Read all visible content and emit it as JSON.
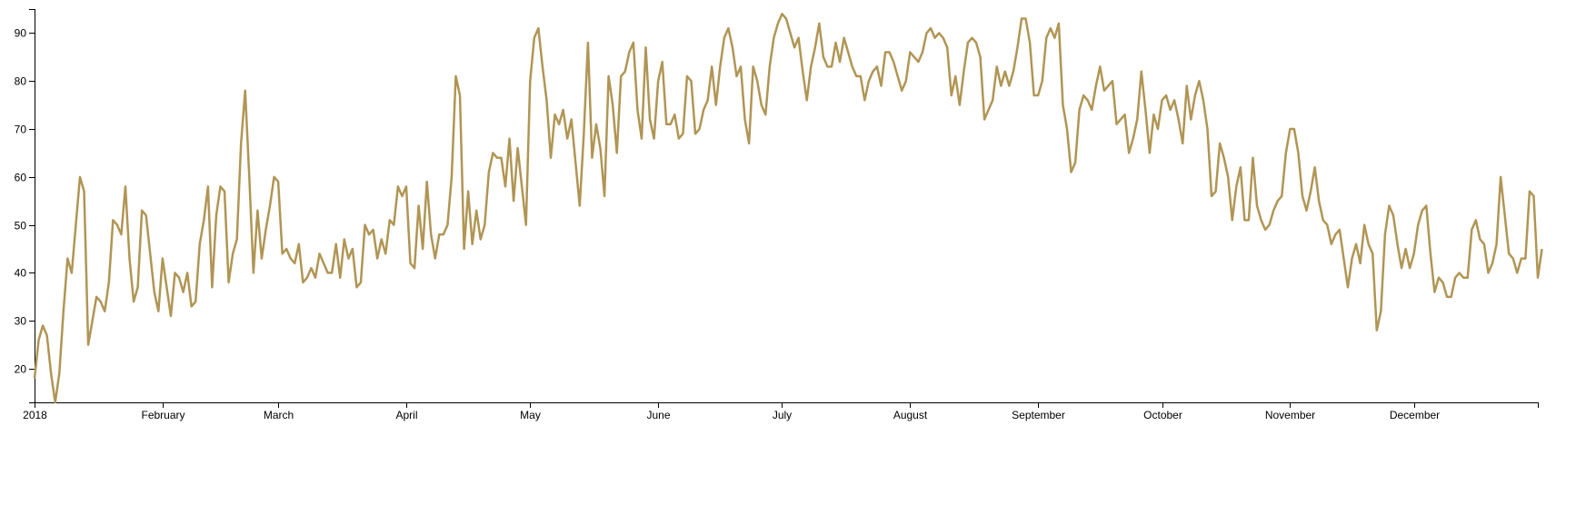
{
  "chart_data": {
    "type": "line",
    "title": "",
    "xlabel": "",
    "ylabel": "",
    "x_start": "2018-01-01",
    "x_end": "2018-12-31",
    "x_tick_labels": [
      "2018",
      "February",
      "March",
      "April",
      "May",
      "June",
      "July",
      "August",
      "September",
      "October",
      "November",
      "December"
    ],
    "x_tick_dates": [
      "2018-01-01",
      "2018-02-01",
      "2018-03-01",
      "2018-04-01",
      "2018-05-01",
      "2018-06-01",
      "2018-07-01",
      "2018-08-01",
      "2018-09-01",
      "2018-10-01",
      "2018-11-01",
      "2018-12-01"
    ],
    "y_ticks": [
      20,
      30,
      40,
      50,
      60,
      70,
      80,
      90
    ],
    "ylim": [
      13,
      95
    ],
    "grid": false,
    "colors": {
      "line": "#b09554",
      "axis": "#000000"
    },
    "series": [
      {
        "values": [
          18,
          26,
          29,
          27,
          19,
          13,
          19,
          32,
          43,
          40,
          50,
          60,
          57,
          25,
          30,
          35,
          34,
          32,
          38,
          51,
          50,
          48,
          58,
          43,
          34,
          37,
          53,
          52,
          44,
          36,
          32,
          43,
          37,
          31,
          40,
          39,
          36,
          40,
          33,
          34,
          46,
          51,
          58,
          37,
          52,
          58,
          57,
          38,
          44,
          47,
          67,
          78,
          60,
          40,
          53,
          43,
          49,
          54,
          60,
          59,
          44,
          45,
          43,
          42,
          46,
          38,
          39,
          41,
          39,
          44,
          42,
          40,
          40,
          46,
          39,
          47,
          43,
          45,
          37,
          38,
          50,
          48,
          49,
          43,
          47,
          44,
          51,
          50,
          58,
          56,
          58,
          42,
          41,
          54,
          45,
          59,
          48,
          43,
          48,
          48,
          50,
          60,
          81,
          77,
          45,
          57,
          46,
          53,
          47,
          50,
          61,
          65,
          64,
          64,
          58,
          68,
          55,
          66,
          58,
          50,
          80,
          89,
          91,
          83,
          76,
          64,
          73,
          71,
          74,
          68,
          72,
          63,
          54,
          69,
          88,
          64,
          71,
          66,
          56,
          81,
          75,
          65,
          81,
          82,
          86,
          88,
          74,
          68,
          87,
          72,
          68,
          80,
          84,
          71,
          71,
          73,
          68,
          69,
          81,
          80,
          69,
          70,
          74,
          76,
          83,
          75,
          83,
          89,
          91,
          87,
          81,
          83,
          72,
          67,
          83,
          80,
          75,
          73,
          83,
          89,
          92,
          94,
          93,
          90,
          87,
          89,
          82,
          76,
          83,
          87,
          92,
          85,
          83,
          83,
          88,
          84,
          89,
          86,
          83,
          81,
          81,
          76,
          80,
          82,
          83,
          79,
          86,
          86,
          84,
          81,
          78,
          80,
          86,
          85,
          84,
          86,
          90,
          91,
          89,
          90,
          89,
          87,
          77,
          81,
          75,
          82,
          88,
          89,
          88,
          85,
          72,
          74,
          76,
          83,
          79,
          82,
          79,
          82,
          87,
          93,
          93,
          88,
          77,
          77,
          80,
          89,
          91,
          89,
          92,
          75,
          70,
          61,
          63,
          74,
          77,
          76,
          74,
          79,
          83,
          78,
          79,
          80,
          71,
          72,
          73,
          65,
          68,
          72,
          82,
          74,
          65,
          73,
          70,
          76,
          77,
          74,
          76,
          72,
          67,
          79,
          72,
          77,
          80,
          76,
          70,
          56,
          57,
          67,
          64,
          60,
          51,
          58,
          62,
          51,
          51,
          64,
          54,
          51,
          49,
          50,
          53,
          55,
          56,
          65,
          70,
          70,
          65,
          56,
          53,
          57,
          62,
          55,
          51,
          50,
          46,
          48,
          49,
          43,
          37,
          43,
          46,
          42,
          50,
          46,
          44,
          28,
          32,
          48,
          54,
          52,
          46,
          41,
          45,
          41,
          44,
          50,
          53,
          54,
          44,
          36,
          39,
          38,
          35,
          35,
          39,
          40,
          39,
          39,
          49,
          51,
          47,
          46,
          40,
          42,
          46,
          60,
          52,
          44,
          43,
          40,
          43,
          43,
          57,
          56,
          39,
          45
        ]
      }
    ]
  }
}
